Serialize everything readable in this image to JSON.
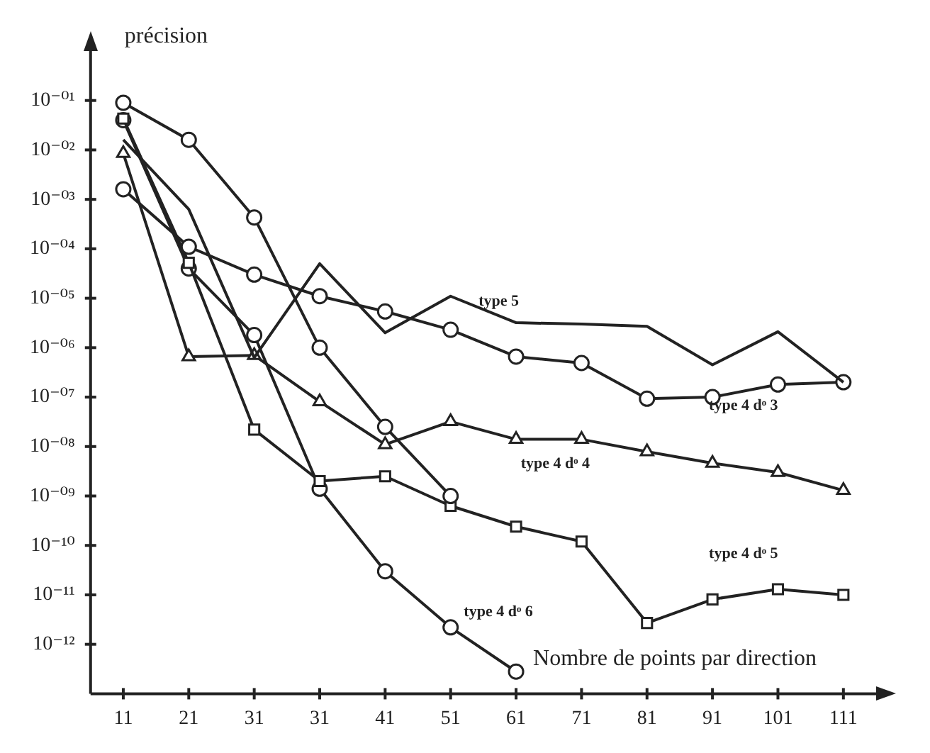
{
  "chart_data": {
    "type": "line",
    "ylabel": "précision",
    "xlabel": "Nombre de points par direction",
    "categories": [
      "11",
      "21",
      "31",
      "31",
      "41",
      "51",
      "61",
      "71",
      "81",
      "91",
      "101",
      "111"
    ],
    "log": "y",
    "ylim": [
      1e-13,
      1
    ],
    "yticks": [
      {
        "value": 0.1,
        "label": "10⁻⁰¹"
      },
      {
        "value": 0.01,
        "label": "10⁻⁰²"
      },
      {
        "value": 0.001,
        "label": "10⁻⁰³"
      },
      {
        "value": 0.0001,
        "label": "10⁻⁰⁴"
      },
      {
        "value": 1e-05,
        "label": "10⁻⁰⁵"
      },
      {
        "value": 1e-06,
        "label": "10⁻⁰⁶"
      },
      {
        "value": 1e-07,
        "label": "10⁻⁰⁷"
      },
      {
        "value": 1e-08,
        "label": "10⁻⁰⁸"
      },
      {
        "value": 1e-09,
        "label": "10⁻⁰⁹"
      },
      {
        "value": 1e-10,
        "label": "10⁻¹⁰"
      },
      {
        "value": 1e-11,
        "label": "10⁻¹¹"
      },
      {
        "value": 1e-12,
        "label": "10⁻¹²"
      }
    ],
    "grid": false,
    "legend": false,
    "line_style": "solid",
    "series": [
      {
        "color": "#222222",
        "marker": "circle",
        "values": [
          0.09,
          0.016,
          0.00043,
          1e-06,
          2.5e-08,
          1e-09,
          null,
          null,
          null,
          null,
          null,
          null
        ]
      },
      {
        "name": "type 5",
        "color": "#222222",
        "marker": "none",
        "values": [
          0.016,
          0.00063,
          6.3e-07,
          5e-05,
          2e-06,
          1.1e-05,
          3.2e-06,
          3e-06,
          2.7e-06,
          4.5e-07,
          2.1e-06,
          2e-07
        ]
      },
      {
        "name": "type 4 dᵒ 3",
        "color": "#222222",
        "marker": "circle",
        "values": [
          0.0016,
          0.00011,
          3e-05,
          1.1e-05,
          5.4e-06,
          2.3e-06,
          6.6e-07,
          4.9e-07,
          9.3e-08,
          1e-07,
          1.8e-07,
          2e-07
        ]
      },
      {
        "name": "type 4 dᵒ 4",
        "color": "#222222",
        "marker": "triangle",
        "values": [
          0.0085,
          6.6e-07,
          7e-07,
          8.1e-08,
          1.1e-08,
          3.2e-08,
          1.4e-08,
          1.4e-08,
          7.9e-09,
          4.6e-09,
          3e-09,
          1.3e-09
        ]
      },
      {
        "name": "type 4 dᵒ 5",
        "color": "#222222",
        "marker": "square",
        "values": [
          0.043,
          5.2e-05,
          2.2e-08,
          2e-09,
          2.5e-09,
          6.3e-10,
          2.4e-10,
          1.2e-10,
          2.7e-12,
          8.1e-12,
          1.3e-11,
          1e-11
        ]
      },
      {
        "name": "type 4 dᵒ 6",
        "color": "#222222",
        "marker": "circle",
        "values": [
          0.04,
          4e-05,
          1.8e-06,
          1.4e-09,
          3e-11,
          2.2e-12,
          2.8e-13,
          null,
          null,
          null,
          null,
          null
        ]
      }
    ]
  }
}
